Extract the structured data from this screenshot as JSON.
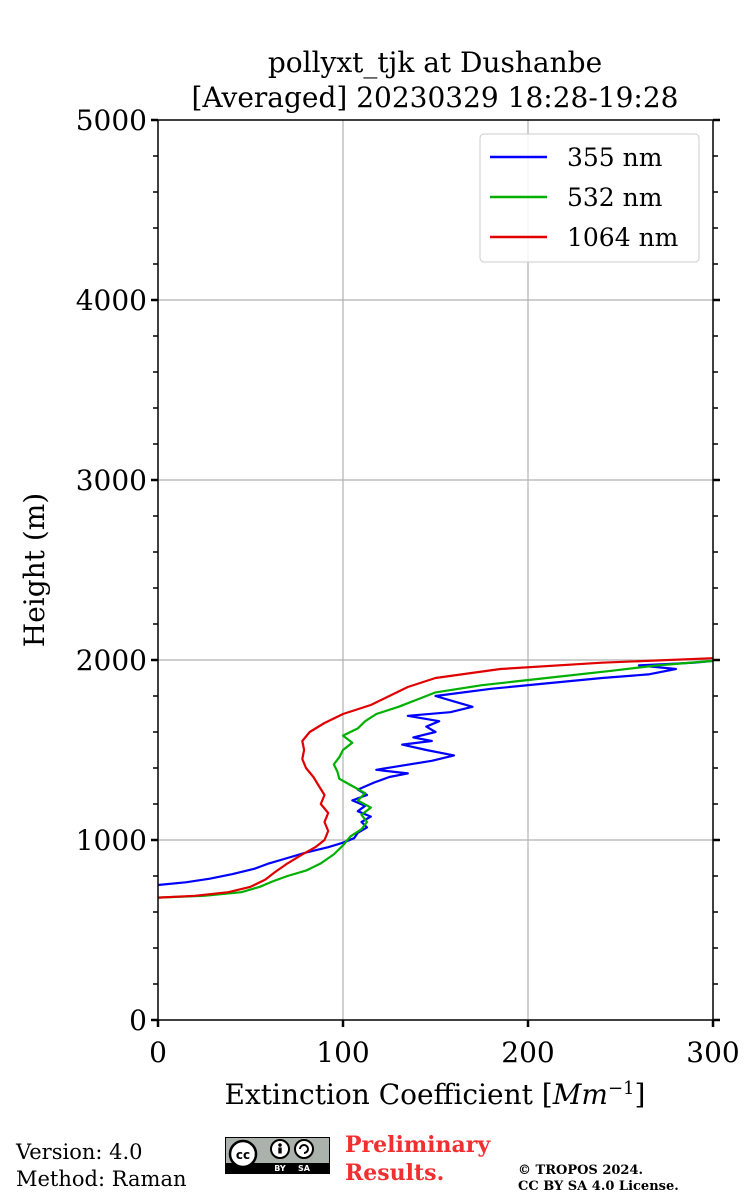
{
  "chart_data": {
    "type": "line",
    "title": "pollyxt_tjk at Dushanbe",
    "subtitle": "[Averaged] 20230329 18:28-19:28",
    "xlabel": "Extinction Coefficient [",
    "xlabel_unit": "Mm",
    "xlabel_exp": "−1",
    "xlabel_close": "]",
    "ylabel": "Height (m)",
    "xlim": [
      0,
      300
    ],
    "ylim": [
      0,
      5000
    ],
    "xticks": [
      0,
      100,
      200,
      300
    ],
    "yticks": [
      0,
      1000,
      2000,
      3000,
      4000,
      5000
    ],
    "grid": true,
    "legend_position": "top-right",
    "series": [
      {
        "name": "355 nm",
        "color": "#0000ff",
        "points": [
          [
            0,
            750
          ],
          [
            15,
            765
          ],
          [
            28,
            785
          ],
          [
            40,
            810
          ],
          [
            52,
            840
          ],
          [
            60,
            870
          ],
          [
            70,
            900
          ],
          [
            80,
            930
          ],
          [
            92,
            960
          ],
          [
            100,
            985
          ],
          [
            106,
            1010
          ],
          [
            108,
            1040
          ],
          [
            113,
            1070
          ],
          [
            110,
            1100
          ],
          [
            115,
            1130
          ],
          [
            108,
            1160
          ],
          [
            112,
            1190
          ],
          [
            105,
            1220
          ],
          [
            113,
            1250
          ],
          [
            108,
            1280
          ],
          [
            117,
            1320
          ],
          [
            125,
            1350
          ],
          [
            135,
            1370
          ],
          [
            118,
            1390
          ],
          [
            130,
            1410
          ],
          [
            148,
            1440
          ],
          [
            160,
            1470
          ],
          [
            145,
            1500
          ],
          [
            132,
            1530
          ],
          [
            148,
            1550
          ],
          [
            138,
            1570
          ],
          [
            150,
            1600
          ],
          [
            145,
            1630
          ],
          [
            152,
            1660
          ],
          [
            135,
            1690
          ],
          [
            158,
            1710
          ],
          [
            170,
            1740
          ],
          [
            160,
            1770
          ],
          [
            150,
            1800
          ],
          [
            180,
            1840
          ],
          [
            210,
            1870
          ],
          [
            240,
            1900
          ],
          [
            265,
            1920
          ],
          [
            280,
            1950
          ],
          [
            260,
            1970
          ],
          [
            290,
            1985
          ],
          [
            300,
            1995
          ]
        ]
      },
      {
        "name": "532 nm",
        "color": "#00b000",
        "points": [
          [
            0,
            680
          ],
          [
            25,
            690
          ],
          [
            45,
            710
          ],
          [
            55,
            740
          ],
          [
            62,
            770
          ],
          [
            70,
            800
          ],
          [
            80,
            830
          ],
          [
            88,
            870
          ],
          [
            95,
            920
          ],
          [
            100,
            970
          ],
          [
            104,
            1020
          ],
          [
            110,
            1060
          ],
          [
            113,
            1100
          ],
          [
            110,
            1140
          ],
          [
            115,
            1180
          ],
          [
            108,
            1220
          ],
          [
            112,
            1260
          ],
          [
            105,
            1300
          ],
          [
            98,
            1340
          ],
          [
            97,
            1380
          ],
          [
            95,
            1420
          ],
          [
            98,
            1460
          ],
          [
            100,
            1500
          ],
          [
            105,
            1540
          ],
          [
            100,
            1580
          ],
          [
            108,
            1620
          ],
          [
            112,
            1660
          ],
          [
            118,
            1700
          ],
          [
            130,
            1740
          ],
          [
            140,
            1780
          ],
          [
            150,
            1820
          ],
          [
            175,
            1860
          ],
          [
            210,
            1900
          ],
          [
            245,
            1940
          ],
          [
            270,
            1970
          ],
          [
            300,
            1995
          ]
        ]
      },
      {
        "name": "1064 nm",
        "color": "#e00000",
        "points": [
          [
            0,
            680
          ],
          [
            20,
            690
          ],
          [
            38,
            710
          ],
          [
            50,
            740
          ],
          [
            58,
            780
          ],
          [
            63,
            820
          ],
          [
            70,
            870
          ],
          [
            78,
            920
          ],
          [
            85,
            960
          ],
          [
            90,
            1000
          ],
          [
            92,
            1050
          ],
          [
            90,
            1100
          ],
          [
            92,
            1150
          ],
          [
            88,
            1200
          ],
          [
            90,
            1250
          ],
          [
            87,
            1300
          ],
          [
            84,
            1350
          ],
          [
            80,
            1400
          ],
          [
            78,
            1450
          ],
          [
            79,
            1500
          ],
          [
            78,
            1550
          ],
          [
            82,
            1600
          ],
          [
            90,
            1650
          ],
          [
            100,
            1700
          ],
          [
            115,
            1750
          ],
          [
            125,
            1800
          ],
          [
            135,
            1850
          ],
          [
            150,
            1900
          ],
          [
            185,
            1950
          ],
          [
            240,
            1985
          ],
          [
            300,
            2010
          ]
        ]
      }
    ]
  },
  "footer": {
    "version": "Version: 4.0",
    "method": "Method: Raman",
    "license_badge": [
      "cc",
      "BY",
      "SA"
    ],
    "preliminary_line1": "Preliminary",
    "preliminary_line2": "Results.",
    "copyright_line1": "© TROPOS 2024.",
    "copyright_line2": "CC BY SA 4.0 License."
  }
}
